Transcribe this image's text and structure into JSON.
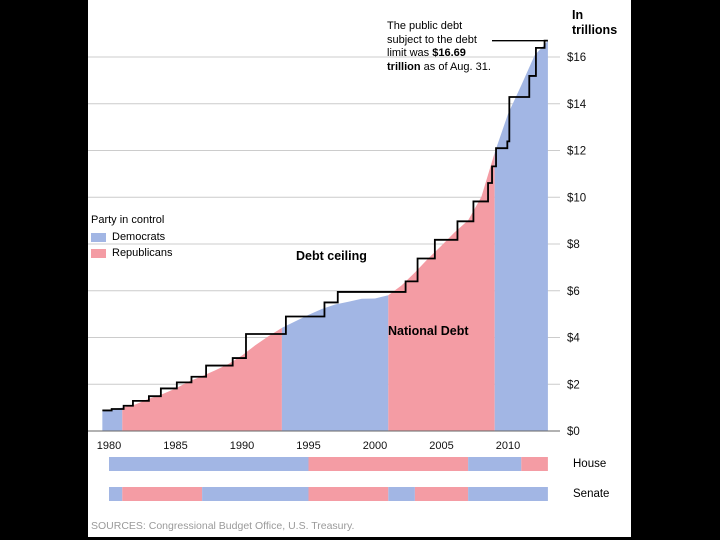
{
  "page": {
    "background": "#000000",
    "panel_background": "#ffffff"
  },
  "labels": {
    "y_axis_title": "In trillions",
    "debt_ceiling": "Debt ceiling",
    "national_debt": "National Debt",
    "house": "House",
    "senate": "Senate",
    "source": "SOURCES: Congressional Budget Office, U.S. Treasury."
  },
  "legend": {
    "title": "Party in control",
    "items": [
      {
        "label": "Democrats",
        "party": "D",
        "color": "#a2b6e4"
      },
      {
        "label": "Republicans",
        "party": "R",
        "color": "#f49ca4"
      }
    ]
  },
  "annotation": {
    "lines": [
      [
        {
          "text": "The public debt",
          "bold": false
        }
      ],
      [
        {
          "text": "subject to the debt",
          "bold": false
        }
      ],
      [
        {
          "text": "limit was ",
          "bold": false
        },
        {
          "text": "$16.69",
          "bold": true
        }
      ],
      [
        {
          "text": "trillion",
          "bold": true
        },
        {
          "text": " as of Aug. 31.",
          "bold": false
        }
      ]
    ]
  },
  "chart_data": {
    "type": "area",
    "title": "National debt and debt ceiling by party in control, 1980-2013",
    "ylabel": "In trillions",
    "x_range": [
      1979.5,
      2013
    ],
    "y_range": [
      0,
      17
    ],
    "grid": true,
    "x_ticks": [
      1980,
      1985,
      1990,
      1995,
      2000,
      2005,
      2010
    ],
    "y_ticks": [
      {
        "value": 0,
        "label": "$0"
      },
      {
        "value": 2,
        "label": "$2"
      },
      {
        "value": 4,
        "label": "$4"
      },
      {
        "value": 6,
        "label": "$6"
      },
      {
        "value": 8,
        "label": "$8"
      },
      {
        "value": 10,
        "label": "$10"
      },
      {
        "value": 12,
        "label": "$12"
      },
      {
        "value": 14,
        "label": "$14"
      },
      {
        "value": 16,
        "label": "$16"
      }
    ],
    "colors": {
      "democrat": "#a2b6e4",
      "republican": "#f49ca4",
      "ceiling_line": "#000000",
      "gridline": "#cccccc",
      "axis_line": "#666666"
    },
    "national_debt_series": {
      "name": "National Debt",
      "unit": "trillions of dollars",
      "points": [
        [
          1979.5,
          0.83
        ],
        [
          1980,
          0.91
        ],
        [
          1981,
          1.0
        ],
        [
          1982,
          1.14
        ],
        [
          1983,
          1.38
        ],
        [
          1984,
          1.57
        ],
        [
          1985,
          1.82
        ],
        [
          1986,
          2.12
        ],
        [
          1987,
          2.35
        ],
        [
          1988,
          2.6
        ],
        [
          1989,
          2.87
        ],
        [
          1990,
          3.23
        ],
        [
          1991,
          3.67
        ],
        [
          1992,
          4.06
        ],
        [
          1993,
          4.41
        ],
        [
          1994,
          4.69
        ],
        [
          1995,
          4.97
        ],
        [
          1996,
          5.22
        ],
        [
          1997,
          5.41
        ],
        [
          1998,
          5.53
        ],
        [
          1999,
          5.66
        ],
        [
          2000,
          5.67
        ],
        [
          2001,
          5.81
        ],
        [
          2002,
          6.23
        ],
        [
          2003,
          6.78
        ],
        [
          2004,
          7.38
        ],
        [
          2005,
          7.93
        ],
        [
          2006,
          8.51
        ],
        [
          2007,
          9.01
        ],
        [
          2008,
          10.02
        ],
        [
          2009,
          11.91
        ],
        [
          2010,
          13.56
        ],
        [
          2011,
          14.79
        ],
        [
          2012,
          16.07
        ],
        [
          2013,
          16.69
        ]
      ]
    },
    "debt_ceiling_steps": {
      "name": "Debt ceiling",
      "unit": "trillions of dollars",
      "points": [
        [
          1979.5,
          0.88
        ],
        [
          1980.2,
          0.94
        ],
        [
          1981.1,
          1.08
        ],
        [
          1981.8,
          1.29
        ],
        [
          1983.0,
          1.49
        ],
        [
          1983.9,
          1.82
        ],
        [
          1985.1,
          2.08
        ],
        [
          1986.2,
          2.32
        ],
        [
          1987.3,
          2.8
        ],
        [
          1989.3,
          3.12
        ],
        [
          1990.3,
          4.15
        ],
        [
          1993.3,
          4.9
        ],
        [
          1996.2,
          5.5
        ],
        [
          1997.2,
          5.95
        ],
        [
          2002.3,
          6.4
        ],
        [
          2003.2,
          7.38
        ],
        [
          2004.5,
          8.18
        ],
        [
          2006.2,
          8.97
        ],
        [
          2007.4,
          9.82
        ],
        [
          2008.5,
          10.61
        ],
        [
          2008.8,
          11.32
        ],
        [
          2009.1,
          12.1
        ],
        [
          2009.95,
          12.39
        ],
        [
          2010.1,
          14.29
        ],
        [
          2011.6,
          15.19
        ],
        [
          2012.1,
          16.39
        ],
        [
          2012.75,
          16.7
        ]
      ]
    },
    "president_control": [
      {
        "from": 1979.5,
        "to": 1981,
        "party": "D"
      },
      {
        "from": 1981,
        "to": 1993,
        "party": "R"
      },
      {
        "from": 1993,
        "to": 2001,
        "party": "D"
      },
      {
        "from": 2001,
        "to": 2009,
        "party": "R"
      },
      {
        "from": 2009,
        "to": 2013,
        "party": "D"
      }
    ],
    "house_control": [
      {
        "from": 1980,
        "to": 1995,
        "party": "D"
      },
      {
        "from": 1995,
        "to": 2007,
        "party": "R"
      },
      {
        "from": 2007,
        "to": 2011,
        "party": "D"
      },
      {
        "from": 2011,
        "to": 2013,
        "party": "R"
      }
    ],
    "senate_control": [
      {
        "from": 1980,
        "to": 1981,
        "party": "D"
      },
      {
        "from": 1981,
        "to": 1987,
        "party": "R"
      },
      {
        "from": 1987,
        "to": 1995,
        "party": "D"
      },
      {
        "from": 1995,
        "to": 2001,
        "party": "R"
      },
      {
        "from": 2001,
        "to": 2003,
        "party": "D"
      },
      {
        "from": 2003,
        "to": 2007,
        "party": "R"
      },
      {
        "from": 2007,
        "to": 2013,
        "party": "D"
      }
    ]
  }
}
